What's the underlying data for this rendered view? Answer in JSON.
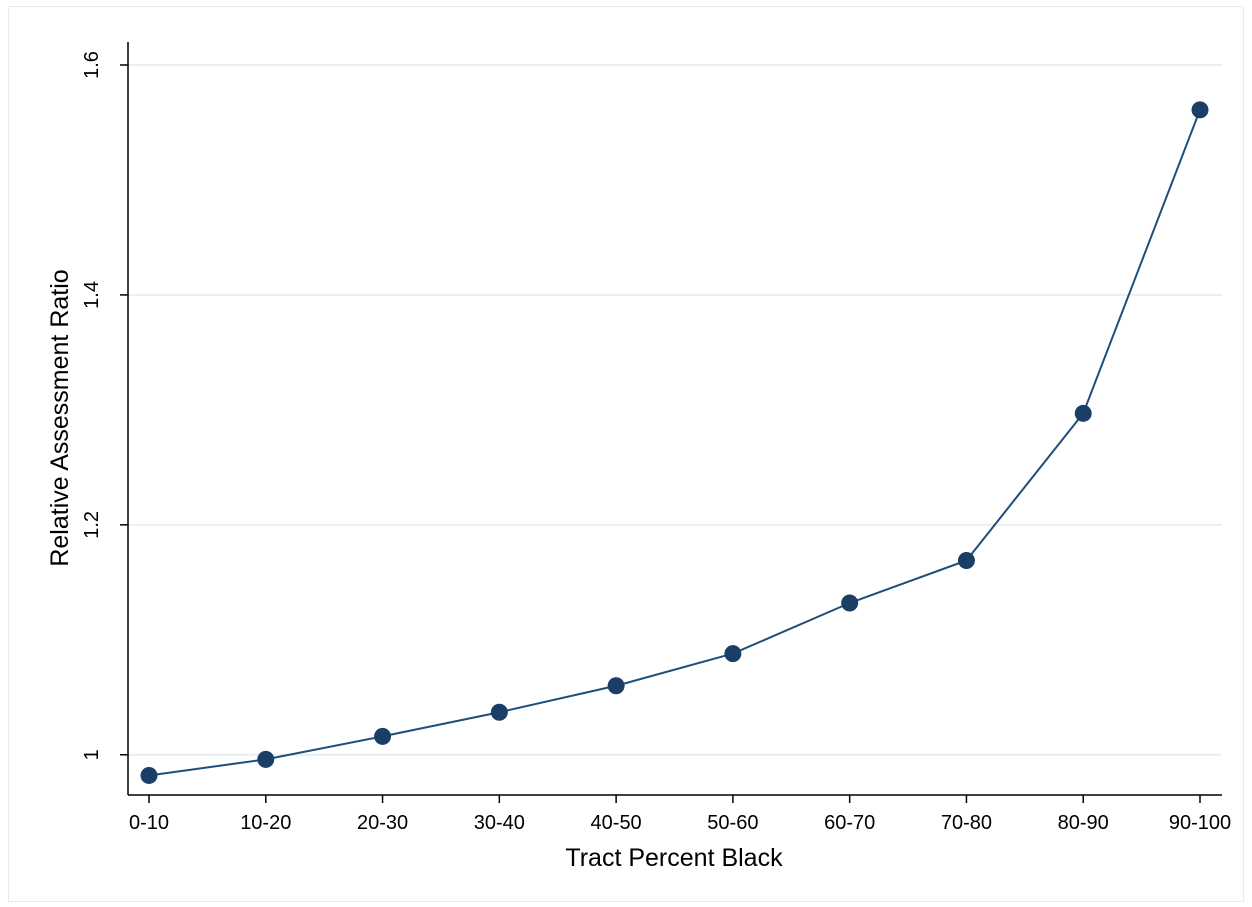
{
  "chart_data": {
    "type": "line",
    "title": "",
    "xlabel": "Tract Percent Black",
    "ylabel": "Relative Assessment Ratio",
    "categories": [
      "0-10",
      "10-20",
      "20-30",
      "30-40",
      "40-50",
      "50-60",
      "60-70",
      "70-80",
      "80-90",
      "90-100"
    ],
    "series": [
      {
        "values": [
          0.982,
          0.996,
          1.016,
          1.037,
          1.06,
          1.088,
          1.132,
          1.169,
          1.297,
          1.561
        ]
      }
    ],
    "ylim": [
      0.965,
      1.62
    ],
    "yticks": [
      1,
      1.2,
      1.4,
      1.6
    ],
    "ytick_labels": [
      "1",
      "1.2",
      "1.4",
      "1.6"
    ],
    "grid": true,
    "legend": "none",
    "colors": {
      "line": "#1f4e79",
      "marker": "#1a3e66",
      "grid": "#e6eff3",
      "axis": "#000000"
    }
  }
}
